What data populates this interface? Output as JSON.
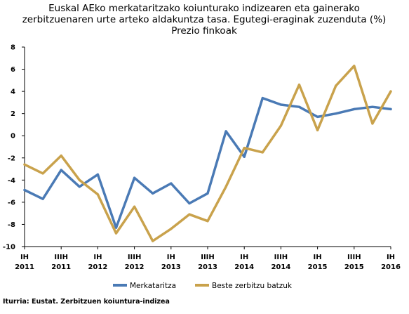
{
  "chart_data": {
    "type": "line",
    "title_lines": [
      "Euskal AEko merkataritzako koiunturako indizearen eta gainerako",
      "zerbitzuenaren urte arteko aldakuntza tasa. Egutegi-eraginak zuzenduta (%)",
      "Prezio finkoak"
    ],
    "x_tick_labels": [
      [
        "IH",
        "2011"
      ],
      [
        "IIIH",
        "2011"
      ],
      [
        "IH",
        "2012"
      ],
      [
        "IIIH",
        "2012"
      ],
      [
        "IH",
        "2013"
      ],
      [
        "IIIH",
        "2013"
      ],
      [
        "IH",
        "2014"
      ],
      [
        "IIIH",
        "2014"
      ],
      [
        "IH",
        "2015"
      ],
      [
        "IIIH",
        "2015"
      ],
      [
        "IH",
        "2016"
      ]
    ],
    "ylim": [
      -10,
      8
    ],
    "yticks": [
      8,
      6,
      4,
      2,
      0,
      -2,
      -4,
      -6,
      -8,
      -10
    ],
    "grid": false,
    "legend_position": "bottom",
    "series": [
      {
        "name": "Merkataritza",
        "color": "#4a7ab5",
        "values": [
          -4.9,
          -5.7,
          -3.1,
          -4.6,
          -3.5,
          -8.3,
          -3.8,
          -5.2,
          -4.3,
          -6.1,
          -5.2,
          0.4,
          -1.9,
          3.4,
          2.8,
          2.6,
          1.7,
          2.0,
          2.4,
          2.6,
          2.4
        ]
      },
      {
        "name": "Beste zerbitzu batzuk",
        "color": "#c9a24c",
        "values": [
          -2.6,
          -3.4,
          -1.8,
          -4.0,
          -5.3,
          -8.8,
          -6.4,
          -9.5,
          -8.4,
          -7.1,
          -7.7,
          -4.6,
          -1.1,
          -1.5,
          0.9,
          4.6,
          0.5,
          4.5,
          6.3,
          1.1,
          4.0
        ]
      }
    ],
    "source": "Iturria: Eustat. Zerbitzuen koiuntura-indizea"
  }
}
